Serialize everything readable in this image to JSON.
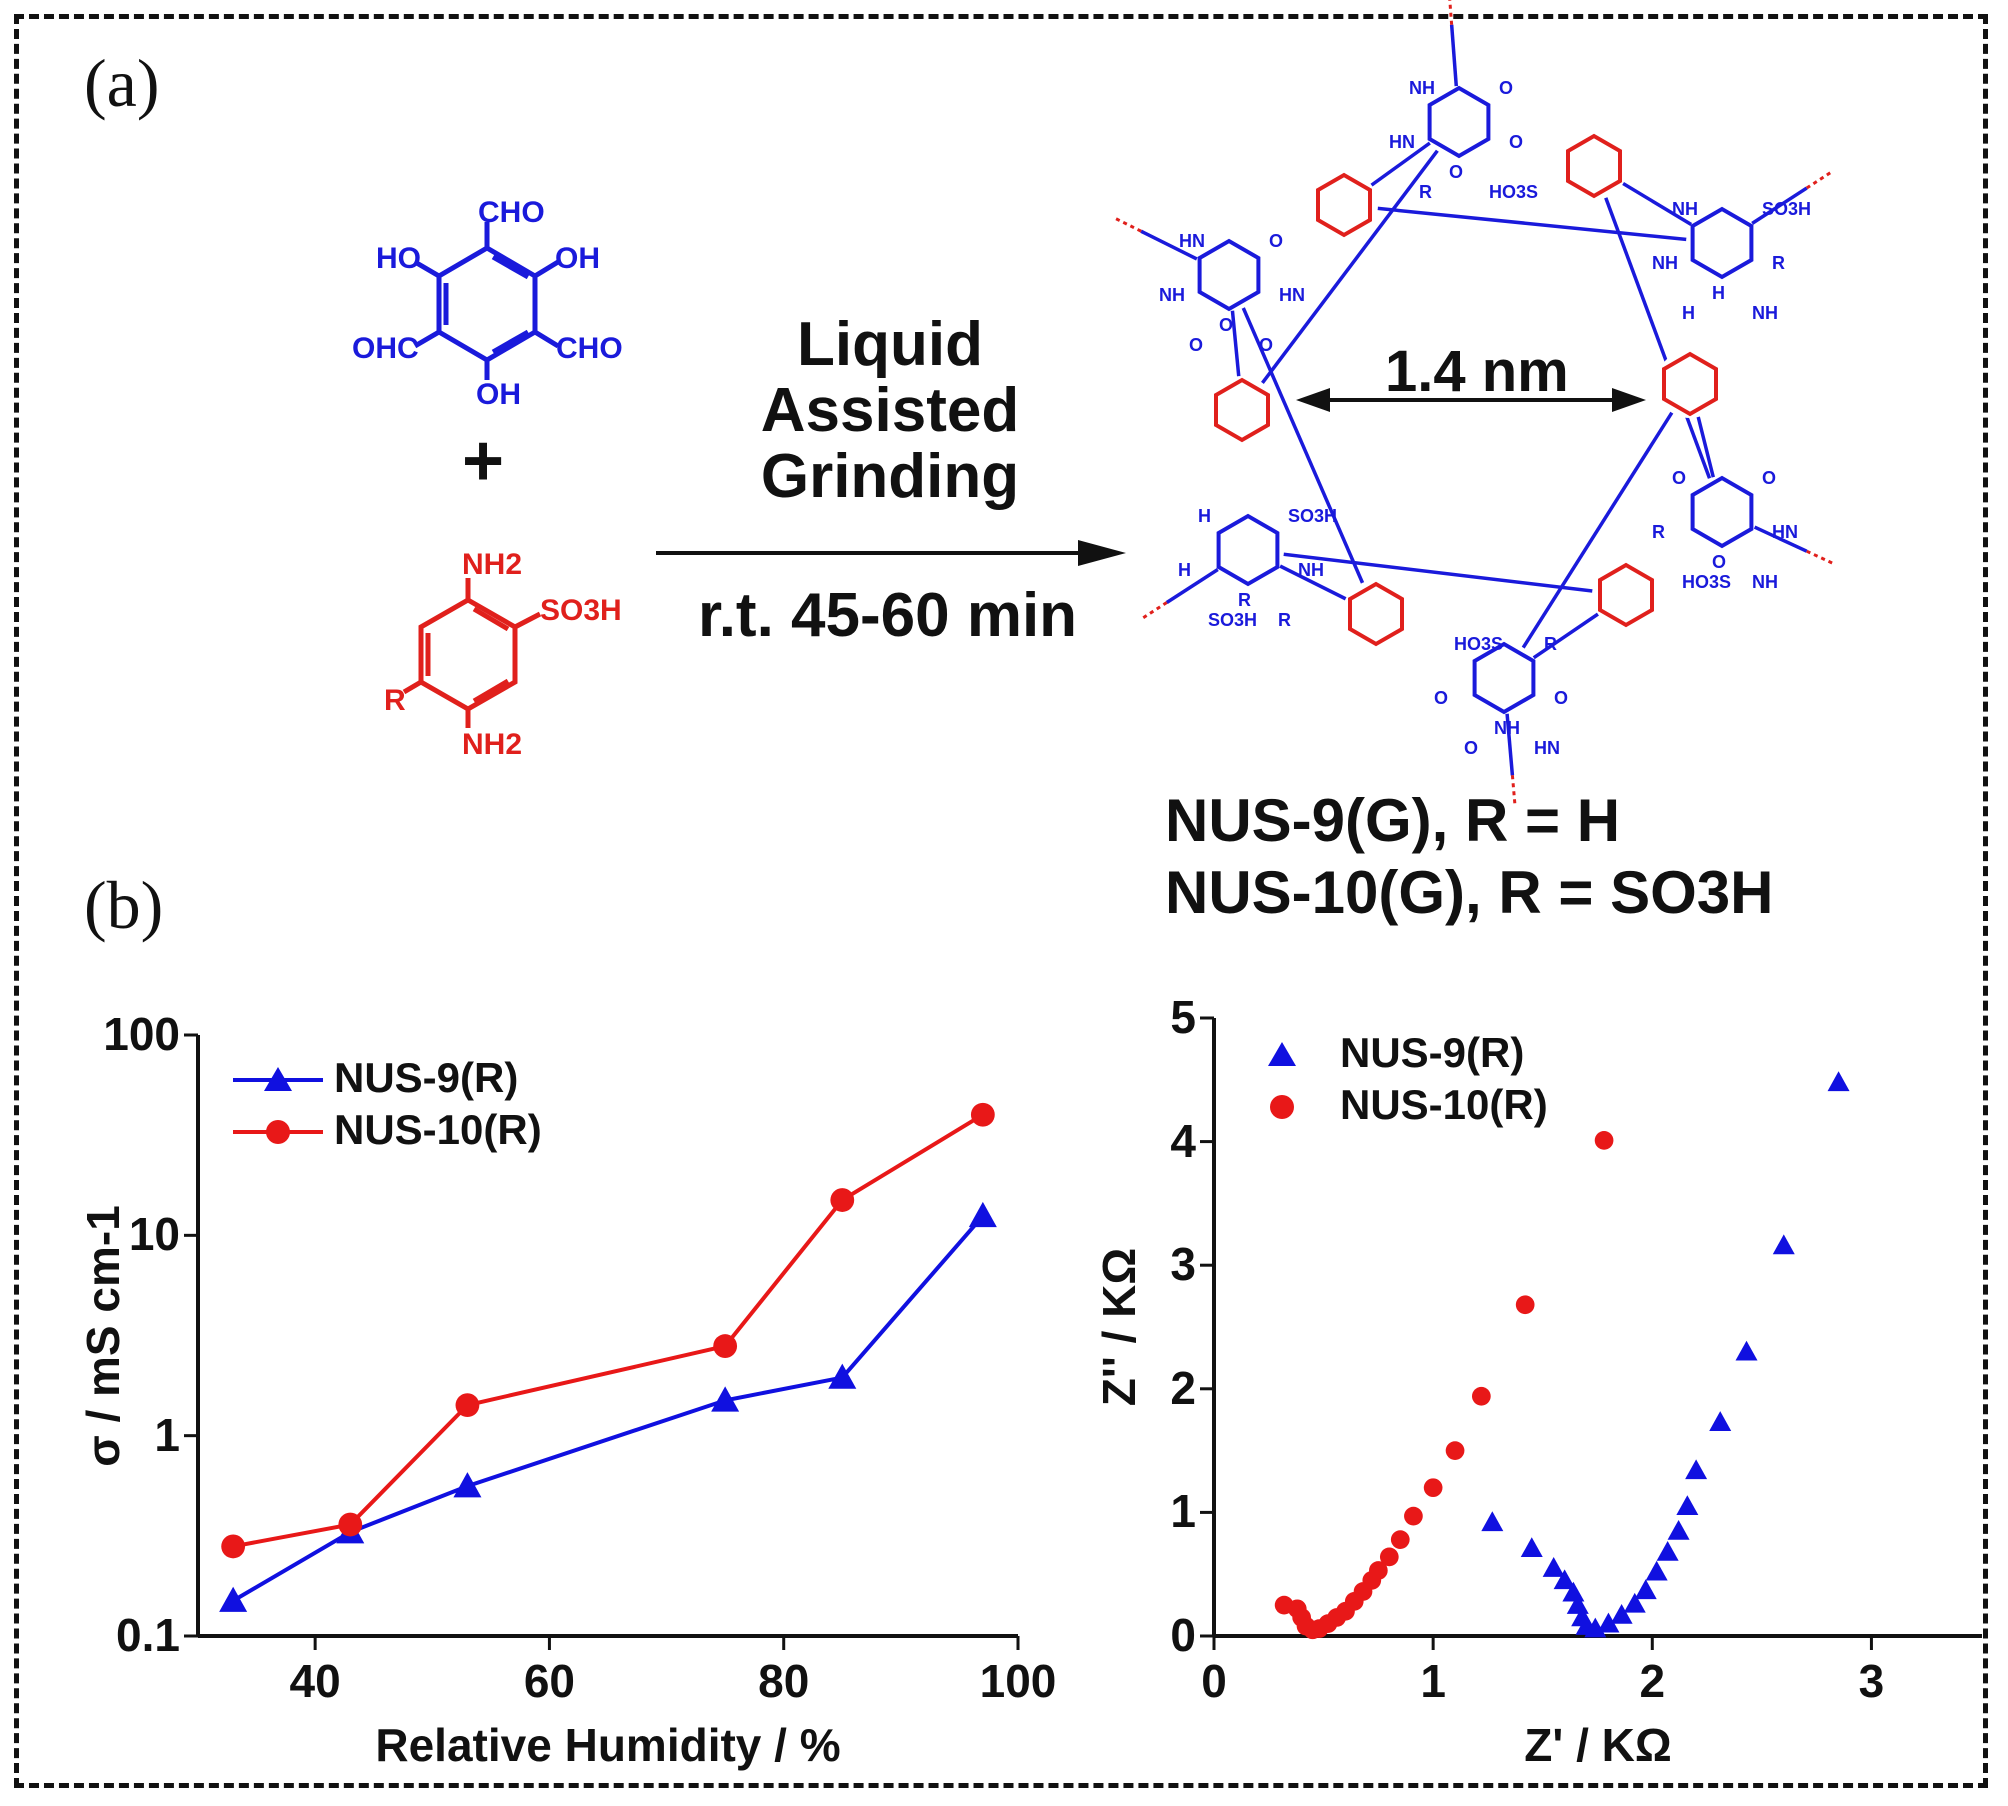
{
  "panels": {
    "a": "(a)",
    "b": "(b)"
  },
  "scheme": {
    "monomer_aldehyde": {
      "labels": [
        "CHO",
        "HO",
        "OH",
        "OHC",
        "CHO",
        "OH"
      ],
      "color": "#1a1adb"
    },
    "plus": "+",
    "monomer_amine": {
      "labels": [
        "NH2",
        "SO3H",
        "R",
        "NH2"
      ],
      "color": "#e0201c"
    },
    "conditions_top": [
      "Liquid",
      "Assisted",
      "Grinding"
    ],
    "conditions_bottom": "r.t. 45-60 min",
    "pore_size": "1.4 nm",
    "framework_labels": [
      "NH",
      "O",
      "O",
      "O",
      "HN",
      "R",
      "HO3S",
      "NH",
      "SO3H",
      "H",
      "R",
      "NH",
      "H",
      "NH",
      "O",
      "O",
      "O",
      "HN",
      "R",
      "HO3S",
      "NH",
      "HO3S",
      "R",
      "NH",
      "O",
      "O",
      "O",
      "HN",
      "H",
      "SO3H",
      "R",
      "NH",
      "H",
      "SO3H",
      "R",
      "HN",
      "O",
      "O",
      "HN",
      "NH",
      "O",
      "O"
    ],
    "products": [
      "NUS-9(G),   R = H",
      "NUS-10(G), R = SO3H"
    ]
  },
  "chart_data": [
    {
      "type": "line",
      "title": "",
      "xlabel": "Relative Humidity / %",
      "ylabel": "σ / mS cm-1",
      "yscale": "log",
      "xlim": [
        30,
        100
      ],
      "ylim": [
        0.1,
        100
      ],
      "xticks": [
        "40",
        "60",
        "80",
        "100"
      ],
      "yticks": [
        "0.1",
        "1",
        "10",
        "100"
      ],
      "legend_position": "top-left",
      "series": [
        {
          "name": "NUS-9(R)",
          "marker": "triangle",
          "color": "#1010e0",
          "x": [
            33,
            43,
            53,
            75,
            85,
            97
          ],
          "y": [
            0.15,
            0.33,
            0.56,
            1.5,
            1.95,
            12.5
          ]
        },
        {
          "name": "NUS-10(R)",
          "marker": "circle",
          "color": "#e81818",
          "x": [
            33,
            43,
            53,
            75,
            85,
            97
          ],
          "y": [
            0.28,
            0.36,
            1.42,
            2.8,
            15,
            40
          ]
        }
      ]
    },
    {
      "type": "scatter",
      "title": "",
      "xlabel": "Z' / KΩ",
      "ylabel": "Z'' / KΩ",
      "xlim": [
        0,
        3.5
      ],
      "ylim": [
        0,
        5
      ],
      "xticks": [
        "0",
        "1",
        "2",
        "3"
      ],
      "yticks": [
        "0",
        "1",
        "2",
        "3",
        "4",
        "5"
      ],
      "legend_position": "top-left",
      "series": [
        {
          "name": "NUS-9(R)",
          "marker": "triangle",
          "color": "#1010e0",
          "x": [
            1.27,
            1.45,
            1.55,
            1.6,
            1.64,
            1.66,
            1.68,
            1.7,
            1.74,
            1.8,
            1.86,
            1.92,
            1.97,
            2.02,
            2.07,
            2.12,
            2.16,
            2.2,
            2.31,
            2.43,
            2.6,
            2.85
          ],
          "y": [
            0.92,
            0.71,
            0.55,
            0.45,
            0.35,
            0.25,
            0.15,
            0.08,
            0.06,
            0.1,
            0.17,
            0.26,
            0.37,
            0.52,
            0.68,
            0.85,
            1.05,
            1.34,
            1.73,
            2.3,
            3.16,
            4.48
          ]
        },
        {
          "name": "NUS-10(R)",
          "marker": "circle",
          "color": "#e81818",
          "x": [
            0.32,
            0.38,
            0.4,
            0.42,
            0.45,
            0.48,
            0.52,
            0.56,
            0.6,
            0.64,
            0.68,
            0.72,
            0.75,
            0.8,
            0.85,
            0.91,
            1.0,
            1.1,
            1.22,
            1.42,
            1.78
          ],
          "y": [
            0.25,
            0.22,
            0.15,
            0.08,
            0.05,
            0.06,
            0.1,
            0.15,
            0.2,
            0.28,
            0.36,
            0.45,
            0.53,
            0.64,
            0.78,
            0.97,
            1.2,
            1.5,
            1.94,
            2.68,
            4.01
          ]
        }
      ]
    }
  ]
}
